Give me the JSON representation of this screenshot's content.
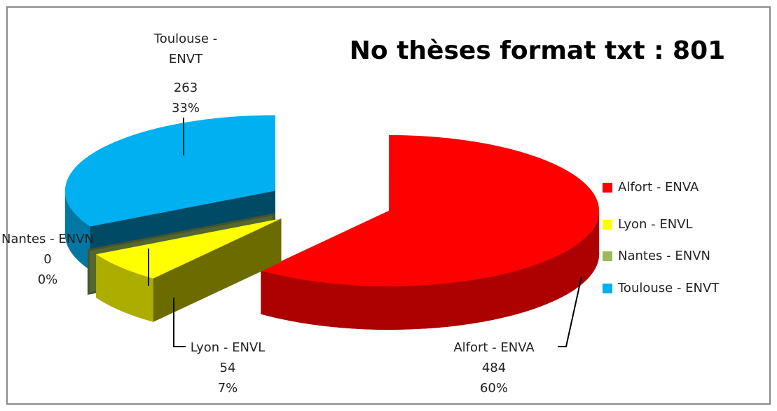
{
  "chart_data": {
    "type": "pie3d",
    "title": "No thèses format txt : 801",
    "categories": [
      "Alfort - ENVA",
      "Lyon - ENVL",
      "Nantes - ENVN",
      "Toulouse - ENVT"
    ],
    "values": [
      484,
      54,
      0,
      263
    ],
    "percentages": [
      {
        "value": 60,
        "label": "60%"
      },
      {
        "value": 7,
        "label": "7%"
      },
      {
        "value": 0,
        "label": "0%"
      },
      {
        "value": 33,
        "label": "33%"
      }
    ],
    "colors": [
      "#ff0000",
      "#ffff00",
      "#9bbb59",
      "#00b0f0"
    ],
    "legend": "right"
  }
}
